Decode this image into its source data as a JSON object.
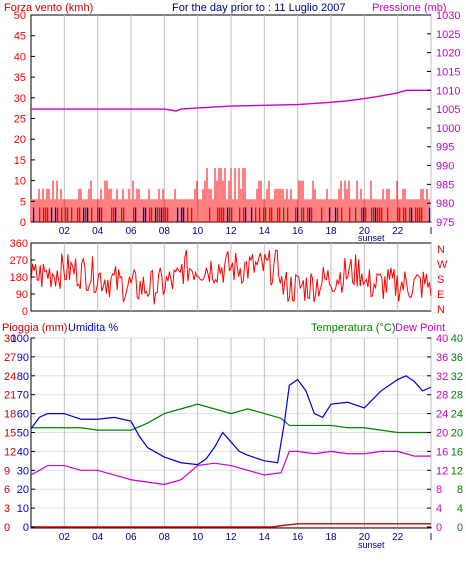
{
  "header": {
    "wind_label": "Forza vento (kmh)",
    "date_text": "For the day prior to : 11 Luglio 2007",
    "pressure_label": "Pressione (mb)"
  },
  "lower_header": {
    "rain_label": "Pioggia (mm)",
    "humidity_label": "Umidita %",
    "temp_label": "Temperatura (°C)",
    "dew_label": "Dew Point"
  },
  "compass": [
    "N",
    "W",
    "S",
    "E",
    "N"
  ],
  "sunset_label": "sunset",
  "colors": {
    "wind_gust": "#ff0000",
    "wind_avg": "#0000cc",
    "wind_avg2": "#008000",
    "pressure": "#cc00cc",
    "direction": "#ff0000",
    "humidity": "#0000cc",
    "temperature": "#008000",
    "dewpoint": "#cc00cc",
    "rain": "#cc0000",
    "grid": "#c0c0c0"
  },
  "chart_data": [
    {
      "type": "line",
      "name": "wind-pressure",
      "x_ticks": [
        "02",
        "04",
        "06",
        "08",
        "10",
        "12",
        "14",
        "16",
        "18",
        "20",
        "22",
        "I"
      ],
      "y_left_ticks": [
        0,
        5,
        10,
        15,
        20,
        25,
        30,
        35,
        40,
        45,
        50
      ],
      "y_right_ticks": [
        975,
        980,
        985,
        990,
        995,
        1000,
        1005,
        1010,
        1015,
        1020,
        1025,
        1030
      ],
      "ylim_left": [
        0,
        50
      ],
      "ylim_right": [
        975,
        1030
      ],
      "series": [
        {
          "name": "Pressione (mb)",
          "axis": "right",
          "x": [
            0,
            2,
            4,
            6,
            8,
            8.7,
            9,
            10,
            12,
            14,
            16,
            17,
            18,
            19,
            20,
            21,
            22,
            22.5,
            23,
            24
          ],
          "values": [
            1005,
            1005,
            1005,
            1005,
            1005,
            1004.5,
            1005,
            1005.3,
            1005.8,
            1006,
            1006.2,
            1006.5,
            1006.8,
            1007.2,
            1007.8,
            1008.5,
            1009.3,
            1010,
            1010,
            1010
          ]
        }
      ]
    },
    {
      "type": "scatter",
      "name": "wind-direction",
      "y_ticks": [
        0,
        90,
        180,
        270,
        360
      ],
      "ylim": [
        0,
        360
      ]
    },
    {
      "type": "line",
      "name": "rain-humidity-temperature",
      "x_ticks": [
        "02",
        "04",
        "06",
        "08",
        "10",
        "12",
        "14",
        "16",
        "18",
        "20",
        "22",
        "I"
      ],
      "y_rain_ticks": [
        0,
        3,
        6,
        9,
        12,
        15,
        18,
        21,
        24,
        27,
        30
      ],
      "y_humidity_ticks": [
        0,
        10,
        20,
        30,
        40,
        50,
        60,
        70,
        80,
        90,
        100
      ],
      "y_temp_left_ticks": [
        0,
        4,
        8,
        12,
        16,
        20,
        24,
        28,
        32,
        36,
        40
      ],
      "y_temp_right_ticks": [
        0,
        4,
        8,
        12,
        16,
        20,
        24,
        28,
        32,
        36,
        40
      ],
      "ylim_rain": [
        0,
        30
      ],
      "ylim_humidity": [
        0,
        100
      ],
      "ylim_temp": [
        0,
        40
      ],
      "series": [
        {
          "name": "Umidita %",
          "axis": "humidity",
          "x": [
            0,
            0.5,
            1,
            2,
            3,
            4,
            5,
            6,
            6.5,
            7,
            8,
            9,
            10,
            10.5,
            11,
            11.5,
            12,
            12.5,
            13,
            14,
            14.8,
            15.2,
            15.5,
            16,
            16.5,
            17,
            17.5,
            18,
            19,
            20,
            21,
            22,
            22.5,
            23,
            23.5,
            24
          ],
          "values": [
            52,
            58,
            60,
            60,
            57,
            57,
            58,
            56,
            48,
            42,
            37,
            34,
            33,
            36,
            42,
            50,
            45,
            40,
            38,
            35,
            34,
            55,
            75,
            78,
            72,
            60,
            58,
            65,
            66,
            63,
            72,
            78,
            80,
            77,
            72,
            74
          ]
        },
        {
          "name": "Temperatura (°C)",
          "axis": "temp",
          "x": [
            0,
            1,
            2,
            3,
            4,
            5,
            6,
            7,
            8,
            9,
            10,
            11,
            12,
            13,
            14,
            15,
            15.5,
            16,
            17,
            18,
            19,
            20,
            21,
            22,
            23,
            24
          ],
          "values": [
            21,
            21,
            21,
            21,
            20.5,
            20.5,
            20.5,
            22,
            24,
            25,
            26,
            25,
            24,
            25,
            24,
            23,
            21.5,
            21.5,
            21.5,
            21.5,
            21,
            21,
            20.5,
            20,
            20,
            20
          ]
        },
        {
          "name": "Dew Point",
          "axis": "temp",
          "x": [
            0,
            1,
            2,
            3,
            4,
            5,
            6,
            7,
            8,
            9,
            10,
            11,
            12,
            13,
            14,
            15,
            15.5,
            16,
            17,
            18,
            19,
            20,
            21,
            22,
            23,
            24
          ],
          "values": [
            11,
            13,
            13,
            12,
            12,
            11,
            10,
            9.5,
            9,
            10,
            13,
            13.5,
            13,
            12,
            11,
            11.5,
            16,
            16,
            15.5,
            16,
            15.5,
            15.5,
            16,
            16,
            15,
            15
          ]
        },
        {
          "name": "Pioggia (mm)",
          "axis": "rain",
          "x": [
            0,
            14.5,
            15,
            16,
            24
          ],
          "values": [
            0,
            0,
            0.2,
            0.5,
            0.5
          ]
        }
      ]
    }
  ]
}
